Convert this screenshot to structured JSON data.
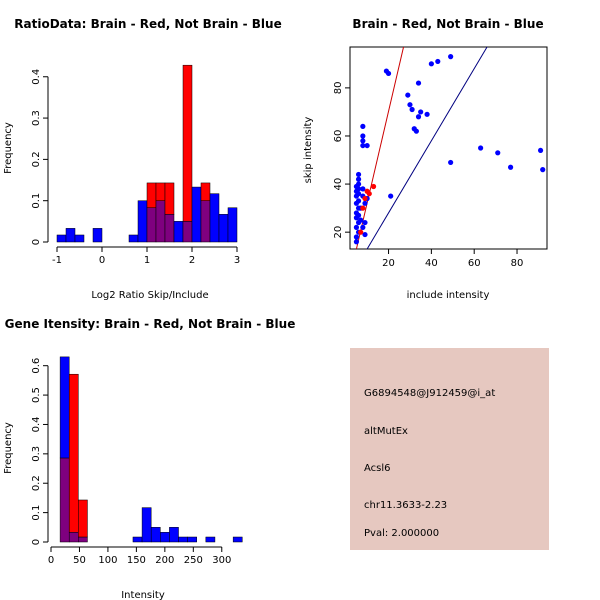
{
  "colors": {
    "red": "#ff0000",
    "blue": "#0000ff",
    "overlap": "#7f007f",
    "panel_bg": "#e6c8c0",
    "pval": "#b00000",
    "fitline_red": "#cc0000",
    "fitline_blue": "#000080"
  },
  "chart_data": [
    {
      "id": "ratio_hist",
      "type": "bar",
      "title": "RatioData: Brain - Red, Not Brain - Blue",
      "xlabel": "Log2 Ratio Skip/Include",
      "ylabel": "Frequency",
      "xlim": [
        -1.0,
        3.0
      ],
      "ylim": [
        0,
        0.42
      ],
      "xticks": [
        -1,
        0,
        1,
        2,
        3
      ],
      "yticks": [
        0,
        0.1,
        0.2,
        0.3,
        0.4
      ],
      "bin_width": 0.2,
      "series": [
        {
          "name": "Not Brain",
          "color": "blue",
          "bins": [
            [
              -1.0,
              0.017
            ],
            [
              -0.8,
              0.033
            ],
            [
              -0.6,
              0.017
            ],
            [
              -0.2,
              0.033
            ],
            [
              0.6,
              0.017
            ],
            [
              0.8,
              0.1
            ],
            [
              1.0,
              0.083
            ],
            [
              1.2,
              0.1
            ],
            [
              1.4,
              0.067
            ],
            [
              1.6,
              0.05
            ],
            [
              1.8,
              0.05
            ],
            [
              2.0,
              0.133
            ],
            [
              2.2,
              0.1
            ],
            [
              2.4,
              0.117
            ],
            [
              2.6,
              0.067
            ],
            [
              2.8,
              0.083
            ]
          ]
        },
        {
          "name": "Brain",
          "color": "red",
          "bins": [
            [
              1.0,
              0.143
            ],
            [
              1.2,
              0.143
            ],
            [
              1.4,
              0.143
            ],
            [
              1.8,
              0.428
            ],
            [
              2.2,
              0.143
            ]
          ]
        }
      ]
    },
    {
      "id": "scatter",
      "type": "scatter",
      "title": "Brain - Red, Not Brain - Blue",
      "xlabel": "include intensity",
      "ylabel": "skip intensity",
      "xlim": [
        2,
        94
      ],
      "ylim": [
        13,
        97
      ],
      "xticks": [
        20,
        40,
        60,
        80
      ],
      "yticks": [
        20,
        40,
        60,
        80
      ],
      "series": [
        {
          "name": "Not Brain",
          "color": "blue",
          "points": [
            [
              5,
              16
            ],
            [
              5,
              18
            ],
            [
              6,
              20
            ],
            [
              5,
              22
            ],
            [
              6,
              24
            ],
            [
              5,
              26
            ],
            [
              6,
              27
            ],
            [
              5,
              28
            ],
            [
              6,
              30
            ],
            [
              5,
              32
            ],
            [
              6,
              33
            ],
            [
              5,
              35
            ],
            [
              6,
              36
            ],
            [
              5,
              37
            ],
            [
              6,
              38
            ],
            [
              5,
              39
            ],
            [
              6,
              40
            ],
            [
              6,
              42
            ],
            [
              6,
              44
            ],
            [
              7,
              25
            ],
            [
              7,
              30
            ],
            [
              8,
              22
            ],
            [
              8,
              35
            ],
            [
              8,
              38
            ],
            [
              8,
              56
            ],
            [
              8,
              58
            ],
            [
              8,
              60
            ],
            [
              8,
              64
            ],
            [
              9,
              19
            ],
            [
              9,
              24
            ],
            [
              9,
              32
            ],
            [
              10,
              56
            ],
            [
              10,
              34
            ],
            [
              19,
              87
            ],
            [
              20,
              86
            ],
            [
              21,
              35
            ],
            [
              29,
              77
            ],
            [
              30,
              73
            ],
            [
              31,
              71
            ],
            [
              32,
              63
            ],
            [
              33,
              62
            ],
            [
              34,
              82
            ],
            [
              34,
              68
            ],
            [
              35,
              70
            ],
            [
              38,
              69
            ],
            [
              40,
              90
            ],
            [
              43,
              91
            ],
            [
              49,
              93
            ],
            [
              49,
              49
            ],
            [
              63,
              55
            ],
            [
              71,
              53
            ],
            [
              77,
              47
            ],
            [
              91,
              54
            ],
            [
              92,
              46
            ]
          ]
        },
        {
          "name": "Brain",
          "color": "red",
          "points": [
            [
              7,
              20
            ],
            [
              8,
              30
            ],
            [
              9,
              34
            ],
            [
              10,
              37
            ],
            [
              11,
              36
            ],
            [
              13,
              39
            ]
          ]
        }
      ],
      "lines": [
        {
          "color": "fitline_red",
          "from": [
            5,
            13
          ],
          "to": [
            27,
            97
          ]
        },
        {
          "color": "fitline_blue",
          "from": [
            10,
            13
          ],
          "to": [
            66,
            97
          ]
        }
      ]
    },
    {
      "id": "intensity_hist",
      "type": "bar",
      "title": "Gene Itensity: Brain - Red, Not Brain - Blue",
      "xlabel": "Intensity",
      "ylabel": "Frequency",
      "xlim": [
        0,
        325
      ],
      "ylim": [
        0,
        0.65
      ],
      "xticks": [
        0,
        50,
        100,
        150,
        200,
        250,
        300
      ],
      "yticks": [
        0,
        0.1,
        0.2,
        0.3,
        0.4,
        0.5,
        0.6
      ],
      "bin_width": 16,
      "series": [
        {
          "name": "Not Brain",
          "color": "blue",
          "bins": [
            [
              16,
              0.63
            ],
            [
              32,
              0.033
            ],
            [
              48,
              0.017
            ],
            [
              144,
              0.017
            ],
            [
              160,
              0.117
            ],
            [
              176,
              0.05
            ],
            [
              192,
              0.033
            ],
            [
              208,
              0.05
            ],
            [
              224,
              0.017
            ],
            [
              240,
              0.017
            ],
            [
              272,
              0.017
            ],
            [
              320,
              0.017
            ]
          ]
        },
        {
          "name": "Brain",
          "color": "red",
          "bins": [
            [
              16,
              0.286
            ],
            [
              32,
              0.571
            ],
            [
              48,
              0.143
            ]
          ]
        }
      ]
    }
  ],
  "info_panel": {
    "probe_id": "G6894548@J912459@i_at",
    "event_type": "altMutEx",
    "gene": "Acsl6",
    "location": "chr11.3633-2.23",
    "pval": "Pval: 2.000000"
  }
}
